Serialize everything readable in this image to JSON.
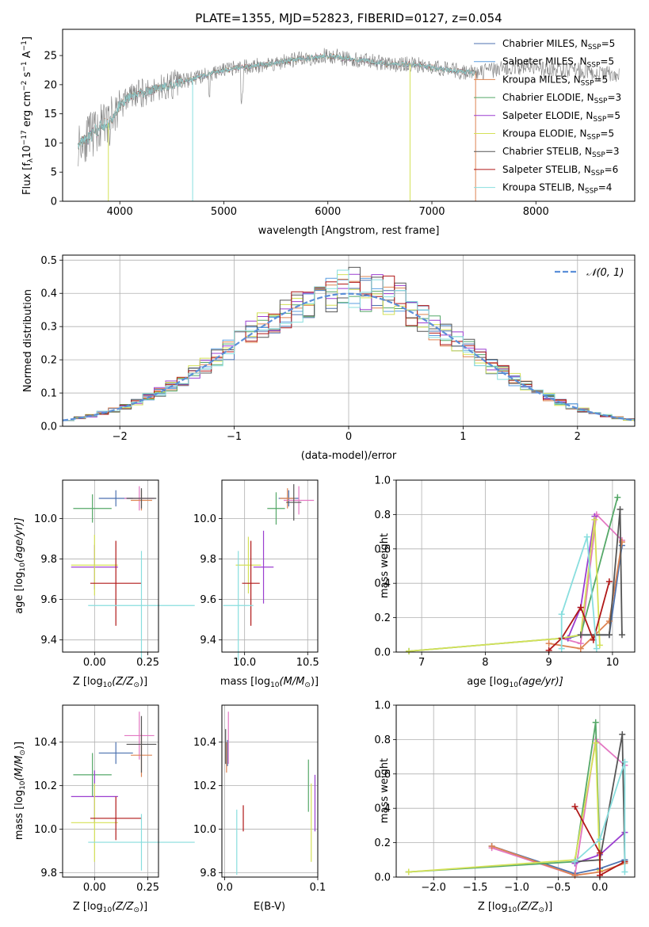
{
  "chart_data": [
    {
      "type": "line",
      "id": "spectrum",
      "title": "PLATE=1355, MJD=52823, FIBERID=0127, z=0.054",
      "xlabel": "wavelength [Angstrom, rest frame]",
      "ylabel_parts": [
        "Flux [f",
        "λ",
        "10",
        "−17",
        " erg cm",
        "−2",
        " s",
        "−1",
        " A",
        "−1",
        "]"
      ],
      "xlim": [
        3450,
        8950
      ],
      "ylim": [
        0,
        29.5
      ],
      "xticks": [
        4000,
        5000,
        6000,
        7000,
        8000
      ],
      "yticks": [
        0,
        5,
        10,
        15,
        20,
        25
      ],
      "data_continuum": {
        "x": [
          3600,
          3700,
          3800,
          3900,
          4000,
          4100,
          4200,
          4300,
          4400,
          4600,
          4800,
          5000,
          5200,
          5400,
          5600,
          5800,
          6000,
          6200,
          6400,
          6600,
          6800,
          7000,
          7200,
          7400,
          7600,
          7800,
          8000,
          8200,
          8400,
          8600,
          8800
        ],
        "y": [
          10,
          11,
          12.5,
          13.5,
          16.5,
          18,
          18.5,
          19,
          19.5,
          20.5,
          21.5,
          22.5,
          23,
          23.5,
          24,
          24.5,
          25,
          24.5,
          24,
          23.5,
          23.5,
          23,
          22.5,
          22,
          22.5,
          23,
          23,
          22.5,
          22.5,
          22,
          21.5
        ]
      },
      "legend_lines": [
        {
          "name": "Chabrier MILES",
          "n": "5",
          "color": "#4c72b0"
        },
        {
          "name": "Salpeter MILES",
          "n": "5",
          "color": "#5a9ee0"
        },
        {
          "name": "Kroupa MILES",
          "n": "5",
          "color": "#dd8452"
        },
        {
          "name": "Chabrier ELODIE",
          "n": "3",
          "color": "#55a868"
        },
        {
          "name": "Salpeter ELODIE",
          "n": "5",
          "color": "#9b3fd0"
        },
        {
          "name": "Kroupa ELODIE",
          "n": "5",
          "color": "#d4e157"
        },
        {
          "name": "Chabrier STELIB",
          "n": "3",
          "color": "#555555"
        },
        {
          "name": "Salpeter STELIB",
          "n": "6",
          "color": "#b01818"
        },
        {
          "name": "Kroupa STELIB",
          "n": "4",
          "color": "#88dede"
        }
      ]
    },
    {
      "type": "histogram",
      "id": "residuals",
      "xlabel": "(data-model)/error",
      "ylabel": "Normed distribution",
      "xlim": [
        -2.5,
        2.5
      ],
      "ylim": [
        0,
        0.515
      ],
      "xticks": [
        -2,
        -1,
        0,
        1,
        2
      ],
      "yticks": [
        0,
        0.1,
        0.2,
        0.3,
        0.4,
        0.5
      ],
      "legend": "𝒩(0, 1)",
      "gaussian_color": "#5b8fd8"
    },
    {
      "type": "scatter",
      "id": "age_vs_Z",
      "xlabel_plain": "Z [log",
      "xlabel_parts": [
        "Z [log",
        "10",
        "(Z/Z",
        "⊙",
        ")]"
      ],
      "ylabel_parts": [
        "age  [log",
        "10",
        "(age/yr)]"
      ],
      "xlim": [
        -0.15,
        0.3
      ],
      "ylim": [
        9.34,
        10.19
      ],
      "xticks": [
        0.0,
        0.25
      ],
      "yticks": [
        9.4,
        9.6,
        9.8,
        10.0
      ],
      "points": [
        {
          "x": 0.1,
          "y": 10.1,
          "xerr": 0.08,
          "yerr": 0.04,
          "color": "#4c72b0"
        },
        {
          "x": 0.21,
          "y": 10.1,
          "xerr": 0.07,
          "yerr": 0.06,
          "color": "#e377c2"
        },
        {
          "x": 0.22,
          "y": 10.09,
          "xerr": 0.05,
          "yerr": 0.05,
          "color": "#dd8452"
        },
        {
          "x": -0.01,
          "y": 10.05,
          "xerr": 0.09,
          "yerr": 0.07,
          "color": "#55a868"
        },
        {
          "x": 0.22,
          "y": 10.1,
          "xerr": 0.07,
          "yerr": 0.05,
          "color": "#555555"
        },
        {
          "x": 0.0,
          "y": 9.76,
          "xerr": 0.11,
          "yerr": 0.11,
          "color": "#9b3fd0"
        },
        {
          "x": 0.0,
          "y": 9.77,
          "xerr": 0.11,
          "yerr": 0.15,
          "color": "#d4e157"
        },
        {
          "x": 0.1,
          "y": 9.68,
          "xerr": 0.12,
          "yerr": 0.21,
          "color": "#b01818"
        },
        {
          "x": 0.22,
          "y": 9.57,
          "xerr": 0.25,
          "yerr": 0.27,
          "color": "#88dede"
        }
      ]
    },
    {
      "type": "scatter",
      "id": "age_vs_mass",
      "xlabel_parts": [
        "mass [log",
        "10",
        "(M/M",
        "⊙",
        ")]"
      ],
      "xlim": [
        9.82,
        10.58
      ],
      "ylim": [
        9.34,
        10.19
      ],
      "xticks": [
        10.0,
        10.5
      ],
      "yticks": [
        9.4,
        9.6,
        9.8,
        10.0
      ],
      "points": [
        {
          "x": 10.35,
          "y": 10.1,
          "xerr": 0.08,
          "yerr": 0.04,
          "color": "#4c72b0"
        },
        {
          "x": 10.43,
          "y": 10.09,
          "xerr": 0.12,
          "yerr": 0.07,
          "color": "#e377c2"
        },
        {
          "x": 10.34,
          "y": 10.1,
          "xerr": 0.06,
          "yerr": 0.05,
          "color": "#dd8452"
        },
        {
          "x": 10.25,
          "y": 10.05,
          "xerr": 0.07,
          "yerr": 0.08,
          "color": "#55a868"
        },
        {
          "x": 10.39,
          "y": 10.08,
          "xerr": 0.06,
          "yerr": 0.09,
          "color": "#555555"
        },
        {
          "x": 10.15,
          "y": 9.76,
          "xerr": 0.08,
          "yerr": 0.18,
          "color": "#9b3fd0"
        },
        {
          "x": 10.03,
          "y": 9.77,
          "xerr": 0.1,
          "yerr": 0.14,
          "color": "#d4e157"
        },
        {
          "x": 10.05,
          "y": 9.68,
          "xerr": 0.07,
          "yerr": 0.21,
          "color": "#b01818"
        },
        {
          "x": 9.95,
          "y": 9.57,
          "xerr": 0.12,
          "yerr": 0.27,
          "color": "#88dede"
        }
      ]
    },
    {
      "type": "line",
      "id": "weight_vs_age",
      "xlabel_parts": [
        "age  [log",
        "10",
        "(age/yr)]"
      ],
      "ylabel": "mass weight",
      "xlim": [
        6.6,
        10.35
      ],
      "ylim": [
        0,
        1.0
      ],
      "xticks": [
        7,
        8,
        9,
        10
      ],
      "yticks": [
        0.0,
        0.2,
        0.4,
        0.6,
        0.8,
        1.0
      ],
      "series": [
        {
          "color": "#4c72b0",
          "x": [
            9.3,
            9.5,
            9.95,
            10.15
          ],
          "y": [
            0.08,
            0.1,
            0.1,
            0.62
          ]
        },
        {
          "color": "#e377c2",
          "x": [
            9.2,
            9.5,
            9.75,
            10.15
          ],
          "y": [
            0.08,
            0.05,
            0.8,
            0.65
          ]
        },
        {
          "color": "#dd8452",
          "x": [
            9.0,
            9.5,
            9.95,
            10.15
          ],
          "y": [
            0.05,
            0.02,
            0.18,
            0.64
          ]
        },
        {
          "color": "#55a868",
          "x": [
            6.8,
            9.2,
            9.5,
            10.08
          ],
          "y": [
            0.005,
            0.08,
            0.1,
            0.9
          ]
        },
        {
          "color": "#9b3fd0",
          "x": [
            9.3,
            9.5,
            9.72
          ],
          "y": [
            0.08,
            0.26,
            0.79
          ]
        },
        {
          "color": "#d4e157",
          "x": [
            6.8,
            9.2,
            9.5,
            9.72,
            9.8
          ],
          "y": [
            0.005,
            0.08,
            0.1,
            0.77,
            0.04
          ]
        },
        {
          "color": "#555555",
          "x": [
            9.5,
            9.95,
            10.12,
            10.15
          ],
          "y": [
            0.1,
            0.1,
            0.83,
            0.1
          ]
        },
        {
          "color": "#b01818",
          "x": [
            9.0,
            9.2,
            9.5,
            9.7,
            9.95
          ],
          "y": [
            0.01,
            0.08,
            0.26,
            0.07,
            0.41
          ]
        },
        {
          "color": "#88dede",
          "x": [
            9.2,
            9.2,
            9.6,
            9.75
          ],
          "y": [
            0.02,
            0.22,
            0.67,
            0.02
          ]
        }
      ]
    },
    {
      "type": "scatter",
      "id": "mass_vs_Z",
      "xlabel_parts": [
        "Z [log",
        "10",
        "(Z/Z",
        "⊙",
        ")]"
      ],
      "ylabel_parts": [
        "mass [log",
        "10",
        "(M/M",
        "⊙",
        ")]"
      ],
      "xlim": [
        -0.15,
        0.3
      ],
      "ylim": [
        9.78,
        10.57
      ],
      "xticks": [
        0.0,
        0.25
      ],
      "yticks": [
        9.8,
        10.0,
        10.2,
        10.4
      ],
      "points": [
        {
          "x": 0.1,
          "y": 10.35,
          "xerr": 0.08,
          "yerr": 0.05,
          "color": "#4c72b0"
        },
        {
          "x": 0.21,
          "y": 10.43,
          "xerr": 0.07,
          "yerr": 0.11,
          "color": "#e377c2"
        },
        {
          "x": 0.22,
          "y": 10.34,
          "xerr": 0.05,
          "yerr": 0.1,
          "color": "#dd8452"
        },
        {
          "x": -0.01,
          "y": 10.25,
          "xerr": 0.09,
          "yerr": 0.1,
          "color": "#55a868"
        },
        {
          "x": 0.22,
          "y": 10.39,
          "xerr": 0.07,
          "yerr": 0.13,
          "color": "#555555"
        },
        {
          "x": 0.0,
          "y": 10.15,
          "xerr": 0.11,
          "yerr": 0.12,
          "color": "#9b3fd0"
        },
        {
          "x": 0.0,
          "y": 10.03,
          "xerr": 0.11,
          "yerr": 0.18,
          "color": "#d4e157"
        },
        {
          "x": 0.1,
          "y": 10.05,
          "xerr": 0.12,
          "yerr": 0.1,
          "color": "#b01818"
        },
        {
          "x": 0.22,
          "y": 9.94,
          "xerr": 0.25,
          "yerr": 0.13,
          "color": "#88dede"
        }
      ]
    },
    {
      "type": "scatter",
      "id": "mass_vs_ebv",
      "xlabel": "E(B-V)",
      "xlim": [
        -0.003,
        0.1
      ],
      "ylim": [
        9.78,
        10.57
      ],
      "xticks": [
        0.0,
        0.1
      ],
      "yticks": [
        9.8,
        10.0,
        10.2,
        10.4
      ],
      "points": [
        {
          "x": 0.003,
          "y": 10.35,
          "yerr": 0.06,
          "color": "#4c72b0"
        },
        {
          "x": 0.004,
          "y": 10.42,
          "yerr": 0.12,
          "color": "#e377c2"
        },
        {
          "x": 0.002,
          "y": 10.33,
          "yerr": 0.07,
          "color": "#dd8452"
        },
        {
          "x": 0.09,
          "y": 10.2,
          "yerr": 0.12,
          "color": "#55a868"
        },
        {
          "x": 0.001,
          "y": 10.38,
          "yerr": 0.08,
          "color": "#555555"
        },
        {
          "x": 0.097,
          "y": 10.12,
          "yerr": 0.13,
          "color": "#9b3fd0"
        },
        {
          "x": 0.093,
          "y": 10.03,
          "yerr": 0.18,
          "color": "#d4e157"
        },
        {
          "x": 0.02,
          "y": 10.05,
          "yerr": 0.06,
          "color": "#b01818"
        },
        {
          "x": 0.013,
          "y": 9.94,
          "yerr": 0.15,
          "color": "#88dede"
        }
      ]
    },
    {
      "type": "line",
      "id": "weight_vs_Z",
      "xlabel_parts": [
        "Z [log",
        "10",
        "(Z/Z",
        "⊙",
        ")]"
      ],
      "ylabel": "mass weight",
      "xlim": [
        -2.45,
        0.42
      ],
      "ylim": [
        0,
        1.0
      ],
      "xticks": [
        -2.0,
        -1.5,
        -1.0,
        -0.5,
        0.0
      ],
      "xtick_labels": [
        "−2.0",
        "−1.5",
        "−1.0",
        "−0.5",
        "0.0"
      ],
      "yticks": [
        0.0,
        0.2,
        0.4,
        0.6,
        0.8,
        1.0
      ],
      "series": [
        {
          "color": "#4c72b0",
          "x": [
            -1.3,
            -0.3,
            0.0,
            0.3
          ],
          "y": [
            0.18,
            0.02,
            0.05,
            0.1
          ]
        },
        {
          "color": "#e377c2",
          "x": [
            -1.3,
            -0.3,
            -0.05,
            0.3
          ],
          "y": [
            0.17,
            0.01,
            0.8,
            0.65
          ]
        },
        {
          "color": "#dd8452",
          "x": [
            -1.3,
            -0.3,
            0.0,
            0.3
          ],
          "y": [
            0.18,
            0.01,
            0.03,
            0.08
          ]
        },
        {
          "color": "#55a868",
          "x": [
            -2.3,
            -0.3,
            -0.05,
            0.0
          ],
          "y": [
            0.03,
            0.09,
            0.9,
            0.1
          ]
        },
        {
          "color": "#9b3fd0",
          "x": [
            -0.3,
            0.0,
            0.3
          ],
          "y": [
            0.08,
            0.13,
            0.26
          ]
        },
        {
          "color": "#d4e157",
          "x": [
            -2.3,
            -0.3,
            -0.05,
            0.0
          ],
          "y": [
            0.03,
            0.1,
            0.78,
            0.04
          ]
        },
        {
          "color": "#555555",
          "x": [
            -0.3,
            0.0,
            0.27,
            0.3
          ],
          "y": [
            0.09,
            0.1,
            0.83,
            0.09
          ]
        },
        {
          "color": "#b01818",
          "x": [
            -0.3,
            0.0,
            0.0,
            0.3
          ],
          "y": [
            0.41,
            0.14,
            0.01,
            0.09
          ]
        },
        {
          "color": "#88dede",
          "x": [
            -0.3,
            0.0,
            0.3,
            0.3
          ],
          "y": [
            0.09,
            0.22,
            0.67,
            0.03
          ]
        }
      ]
    }
  ]
}
